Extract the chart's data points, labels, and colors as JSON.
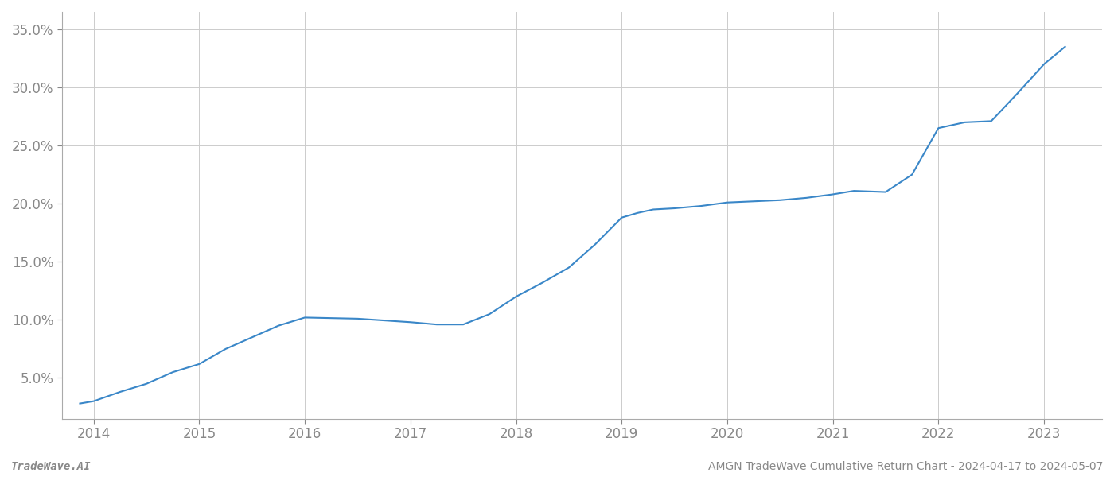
{
  "x_values": [
    2013.87,
    2014.0,
    2014.25,
    2014.5,
    2014.75,
    2015.0,
    2015.25,
    2015.5,
    2015.75,
    2016.0,
    2016.25,
    2016.5,
    2016.75,
    2017.0,
    2017.25,
    2017.5,
    2017.75,
    2018.0,
    2018.25,
    2018.5,
    2018.75,
    2019.0,
    2019.15,
    2019.3,
    2019.5,
    2019.75,
    2020.0,
    2020.25,
    2020.5,
    2020.75,
    2021.0,
    2021.2,
    2021.5,
    2021.75,
    2022.0,
    2022.25,
    2022.5,
    2022.75,
    2023.0,
    2023.2
  ],
  "y_values": [
    2.8,
    3.0,
    3.8,
    4.5,
    5.5,
    6.2,
    7.5,
    8.5,
    9.5,
    10.2,
    10.15,
    10.1,
    9.95,
    9.8,
    9.6,
    9.6,
    10.5,
    12.0,
    13.2,
    14.5,
    16.5,
    18.8,
    19.2,
    19.5,
    19.6,
    19.8,
    20.1,
    20.2,
    20.3,
    20.5,
    20.8,
    21.1,
    21.0,
    22.5,
    26.5,
    27.0,
    27.1,
    29.5,
    32.0,
    33.5
  ],
  "line_color": "#3a87c8",
  "line_width": 1.5,
  "xlim": [
    2013.7,
    2023.55
  ],
  "ylim_min": 1.5,
  "ylim_max": 36.5,
  "yticks": [
    5.0,
    10.0,
    15.0,
    20.0,
    25.0,
    30.0,
    35.0
  ],
  "xticks": [
    2014,
    2015,
    2016,
    2017,
    2018,
    2019,
    2020,
    2021,
    2022,
    2023
  ],
  "grid_color": "#cccccc",
  "background_color": "#ffffff",
  "footer_left": "TradeWave.AI",
  "footer_right": "AMGN TradeWave Cumulative Return Chart - 2024-04-17 to 2024-05-07",
  "tick_label_color": "#888888",
  "footer_color": "#888888",
  "tick_fontsize": 12,
  "footer_fontsize": 10,
  "left_spine_color": "#aaaaaa",
  "bottom_spine_color": "#aaaaaa"
}
